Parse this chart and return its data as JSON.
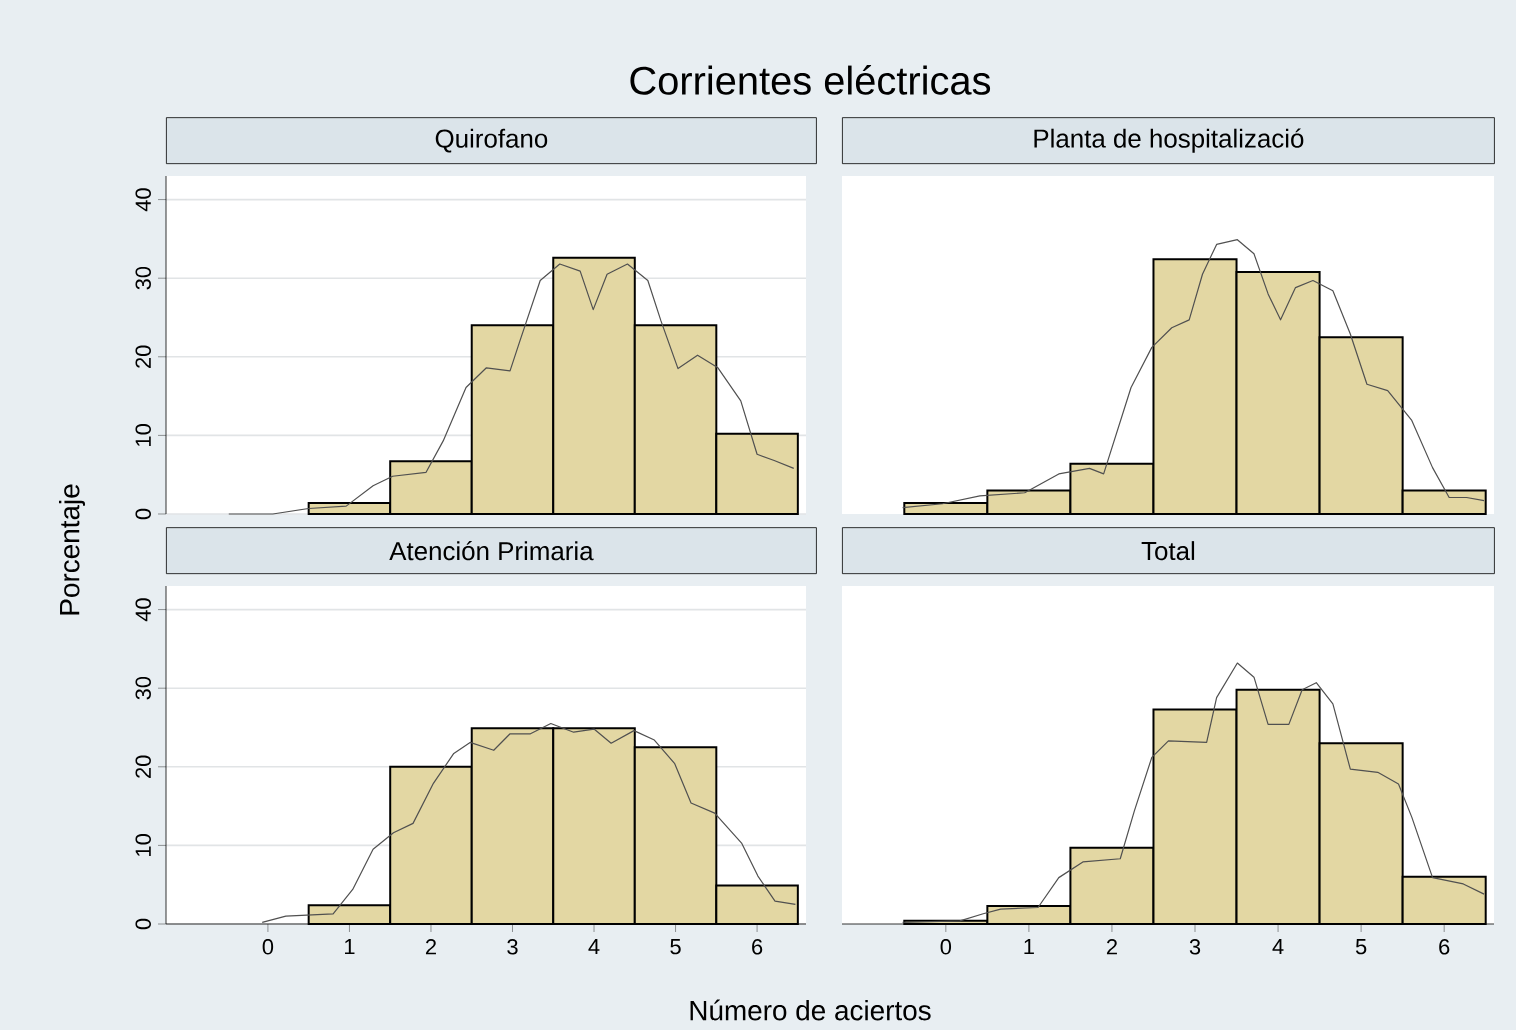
{
  "chart_data": [
    {
      "type": "histogram",
      "title": "Corrientes eléctricas",
      "subtitle": "Quirofano",
      "ylabel": "Porcentaje",
      "bins": [
        -0.5,
        0.5,
        1.5,
        2.5,
        3.5,
        4.5,
        5.5,
        6.5
      ],
      "values": [
        null,
        1.4,
        6.7,
        24.0,
        32.6,
        24.0,
        10.2
      ],
      "color": "#e3d7a3",
      "xlim": [
        -1.25,
        6.6
      ],
      "ylim": [
        0,
        43
      ],
      "xticks": [
        0,
        1,
        2,
        3,
        4,
        5,
        6
      ],
      "yticks": [
        0,
        10,
        20,
        30,
        40
      ],
      "grid": "y",
      "tick_labels": "y",
      "series": [
        {
          "type": "line",
          "color": "#505050",
          "x": [
            -0.48,
            0.06,
            0.5,
            0.96,
            1.29,
            1.53,
            1.94,
            2.15,
            2.43,
            2.68,
            2.97,
            3.09,
            3.34,
            3.58,
            3.83,
            3.99,
            4.16,
            4.41,
            4.66,
            4.82,
            5.03,
            5.27,
            5.52,
            5.8,
            6.0,
            6.21,
            6.45
          ],
          "values": [
            0,
            0,
            0.7,
            1.0,
            3.6,
            4.8,
            5.3,
            9.3,
            16.1,
            18.6,
            18.2,
            22.0,
            29.7,
            31.8,
            30.9,
            26.0,
            30.5,
            31.8,
            29.7,
            24.6,
            18.5,
            20.2,
            18.6,
            14.4,
            7.6,
            6.8,
            5.8
          ]
        }
      ]
    },
    {
      "type": "histogram",
      "subtitle": "Planta de hospitalizació",
      "bins": [
        -0.5,
        0.5,
        1.5,
        2.5,
        3.5,
        4.5,
        5.5,
        6.5
      ],
      "values": [
        1.4,
        3.0,
        6.4,
        32.4,
        30.8,
        22.5,
        3.0
      ],
      "color": "#e3d7a3",
      "xlim": [
        -1.25,
        6.6
      ],
      "ylim": [
        0,
        43
      ],
      "xticks": [
        0,
        1,
        2,
        3,
        4,
        5,
        6
      ],
      "yticks": [
        0,
        10,
        20,
        30,
        40
      ],
      "grid": "y",
      "tick_labels": false,
      "series": [
        {
          "type": "line",
          "color": "#505050",
          "x": [
            -0.52,
            -0.04,
            0.41,
            0.95,
            1.36,
            1.73,
            1.9,
            2.23,
            2.48,
            2.72,
            2.93,
            3.09,
            3.26,
            3.51,
            3.71,
            3.88,
            4.03,
            4.21,
            4.42,
            4.66,
            4.87,
            5.07,
            5.32,
            5.61,
            5.86,
            6.06,
            6.27,
            6.48
          ],
          "values": [
            0.8,
            1.3,
            2.3,
            2.7,
            5.1,
            5.8,
            5.1,
            16.1,
            21.2,
            23.7,
            24.7,
            30.5,
            34.3,
            34.9,
            33.1,
            28.0,
            24.7,
            28.8,
            29.7,
            28.4,
            22.9,
            16.5,
            15.7,
            11.9,
            5.9,
            2.1,
            2.1,
            1.7
          ]
        }
      ]
    },
    {
      "type": "histogram",
      "subtitle": "Atención Primaria",
      "xlabel": "Número de aciertos",
      "bins": [
        -0.5,
        0.5,
        1.5,
        2.5,
        3.5,
        4.5,
        5.5,
        6.5
      ],
      "values": [
        null,
        2.4,
        20.0,
        24.9,
        24.9,
        22.5,
        4.9
      ],
      "color": "#e3d7a3",
      "xlim": [
        -1.25,
        6.6
      ],
      "ylim": [
        0,
        43
      ],
      "xticks": [
        0,
        1,
        2,
        3,
        4,
        5,
        6
      ],
      "yticks": [
        0,
        10,
        20,
        30,
        40
      ],
      "grid": "y",
      "series": [
        {
          "type": "line",
          "color": "#505050",
          "x": [
            -0.07,
            0.22,
            0.8,
            1.04,
            1.29,
            1.54,
            1.78,
            2.03,
            2.28,
            2.48,
            2.77,
            2.97,
            3.22,
            3.47,
            3.75,
            4.0,
            4.21,
            4.49,
            4.74,
            4.99,
            5.19,
            5.48,
            5.81,
            6.01,
            6.22,
            6.47
          ],
          "values": [
            0.2,
            1.0,
            1.3,
            4.4,
            9.5,
            11.6,
            12.8,
            17.9,
            21.7,
            23.1,
            22.1,
            24.2,
            24.2,
            25.5,
            24.4,
            24.8,
            23.0,
            24.6,
            23.4,
            20.4,
            15.4,
            14.1,
            10.3,
            6.1,
            2.9,
            2.5
          ]
        }
      ]
    },
    {
      "type": "histogram",
      "subtitle": "Total",
      "bins": [
        -0.5,
        0.5,
        1.5,
        2.5,
        3.5,
        4.5,
        5.5,
        6.5
      ],
      "values": [
        0.4,
        2.3,
        9.7,
        27.3,
        29.8,
        23.0,
        6.0
      ],
      "color": "#e3d7a3",
      "xlim": [
        -1.25,
        6.6
      ],
      "ylim": [
        0,
        43
      ],
      "xticks": [
        0,
        1,
        2,
        3,
        4,
        5,
        6
      ],
      "yticks": [
        0,
        10,
        20,
        30,
        40
      ],
      "grid": "y",
      "tick_labels": "x",
      "series": [
        {
          "type": "line",
          "color": "#505050",
          "x": [
            -0.52,
            0.17,
            0.45,
            0.66,
            1.11,
            1.36,
            1.65,
            2.1,
            2.27,
            2.48,
            2.68,
            3.14,
            3.26,
            3.51,
            3.71,
            3.88,
            4.13,
            4.29,
            4.46,
            4.66,
            4.87,
            5.2,
            5.45,
            5.61,
            5.86,
            6.23,
            6.48
          ],
          "values": [
            0.2,
            0.4,
            1.3,
            1.9,
            2.1,
            5.9,
            7.9,
            8.3,
            14.4,
            21.2,
            23.3,
            23.1,
            28.8,
            33.2,
            31.4,
            25.4,
            25.4,
            29.8,
            30.7,
            28.0,
            19.7,
            19.3,
            17.8,
            13.6,
            5.9,
            5.1,
            3.8
          ]
        }
      ]
    }
  ]
}
